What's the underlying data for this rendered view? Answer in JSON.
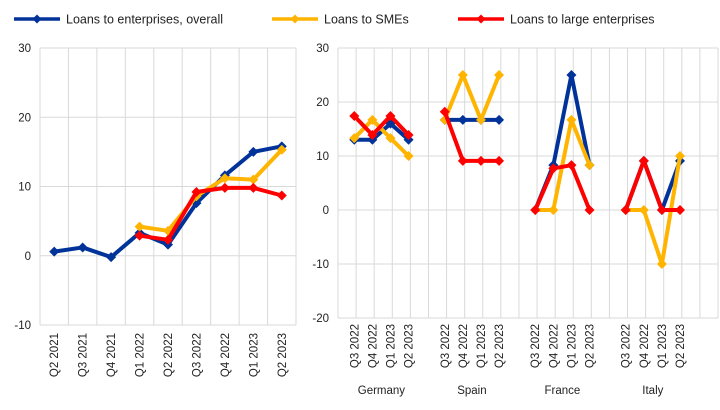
{
  "legend": [
    {
      "label": "Loans to enterprises, overall",
      "color": "#003399"
    },
    {
      "label": "Loans to SMEs",
      "color": "#FFB400"
    },
    {
      "label": "Loans to large enterprises",
      "color": "#FF0000"
    }
  ],
  "chart_data": [
    {
      "type": "line",
      "categories": [
        "Q2 2021",
        "Q3 2021",
        "Q4 2021",
        "Q1 2022",
        "Q2 2022",
        "Q3 2022",
        "Q4 2022",
        "Q1 2023",
        "Q2 2023"
      ],
      "ylim": [
        -10,
        30
      ],
      "yticks": [
        -10,
        0,
        10,
        20,
        30
      ],
      "series": [
        {
          "name": "Loans to enterprises, overall",
          "color": "#003399",
          "values": [
            0.6,
            1.2,
            -0.2,
            3.3,
            1.6,
            7.6,
            11.6,
            15.0,
            15.8
          ]
        },
        {
          "name": "Loans to SMEs",
          "color": "#FFB400",
          "values": [
            null,
            null,
            null,
            4.2,
            3.6,
            8.6,
            11.2,
            11.0,
            15.3
          ]
        },
        {
          "name": "Loans to large enterprises",
          "color": "#FF0000",
          "values": [
            null,
            null,
            null,
            2.9,
            2.3,
            9.2,
            9.8,
            9.8,
            8.7
          ]
        }
      ]
    },
    {
      "type": "line",
      "ylim": [
        -20,
        30
      ],
      "yticks": [
        -20,
        -10,
        0,
        10,
        20,
        30
      ],
      "categories": [
        "Q3 2022",
        "Q4 2022",
        "Q1 2023",
        "Q2 2023"
      ],
      "groups": [
        {
          "label": "Germany",
          "series": [
            {
              "name": "Loans to enterprises, overall",
              "values": [
                13.0,
                13.0,
                16.0,
                13.0
              ]
            },
            {
              "name": "Loans to SMEs",
              "values": [
                13.3,
                16.7,
                13.3,
                10.0
              ]
            },
            {
              "name": "Loans to large enterprises",
              "values": [
                17.4,
                13.9,
                17.4,
                13.9
              ]
            }
          ]
        },
        {
          "label": "Spain",
          "series": [
            {
              "name": "Loans to enterprises, overall",
              "values": [
                16.7,
                16.7,
                16.7,
                16.7
              ]
            },
            {
              "name": "Loans to SMEs",
              "values": [
                16.7,
                25.0,
                16.7,
                25.0
              ]
            },
            {
              "name": "Loans to large enterprises",
              "values": [
                18.2,
                9.1,
                9.1,
                9.1
              ]
            }
          ]
        },
        {
          "label": "France",
          "series": [
            {
              "name": "Loans to enterprises, overall",
              "values": [
                0.0,
                8.3,
                25.0,
                8.3
              ]
            },
            {
              "name": "Loans to SMEs",
              "values": [
                0.0,
                0.0,
                16.7,
                8.3
              ]
            },
            {
              "name": "Loans to large enterprises",
              "values": [
                0.0,
                7.7,
                8.3,
                0.0
              ]
            }
          ]
        },
        {
          "label": "Italy",
          "series": [
            {
              "name": "Loans to enterprises, overall",
              "values": [
                0.0,
                9.1,
                0.0,
                9.1
              ]
            },
            {
              "name": "Loans to SMEs",
              "values": [
                0.0,
                0.0,
                -10.0,
                10.0
              ]
            },
            {
              "name": "Loans to large enterprises",
              "values": [
                0.0,
                9.1,
                0.0,
                0.0
              ]
            }
          ]
        }
      ]
    }
  ]
}
